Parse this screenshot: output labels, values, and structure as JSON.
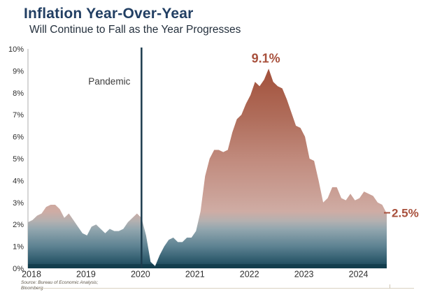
{
  "header": {
    "title": "Inflation Year-Over-Year",
    "subtitle": "Will Continue to Fall as the Year Progresses"
  },
  "source": {
    "line1": "Source: Bureau of Economic Analysis;",
    "line2": "Bloomberg"
  },
  "chart_data": {
    "type": "area",
    "title": "Inflation Year-Over-Year",
    "frequency": "monthly",
    "x_start": "2018-01",
    "x_end": "2024-08",
    "values": [
      2.1,
      2.2,
      2.4,
      2.5,
      2.8,
      2.9,
      2.9,
      2.7,
      2.3,
      2.5,
      2.2,
      1.9,
      1.6,
      1.5,
      1.9,
      2.0,
      1.8,
      1.6,
      1.8,
      1.7,
      1.7,
      1.8,
      2.1,
      2.3,
      2.5,
      2.3,
      1.5,
      0.3,
      0.1,
      0.6,
      1.0,
      1.3,
      1.4,
      1.2,
      1.2,
      1.4,
      1.4,
      1.7,
      2.6,
      4.2,
      5.0,
      5.4,
      5.4,
      5.3,
      5.4,
      6.2,
      6.8,
      7.0,
      7.5,
      7.9,
      8.5,
      8.3,
      8.6,
      9.1,
      8.5,
      8.3,
      8.2,
      7.7,
      7.1,
      6.5,
      6.4,
      6.0,
      5.0,
      4.9,
      4.0,
      3.0,
      3.2,
      3.7,
      3.7,
      3.2,
      3.1,
      3.4,
      3.1,
      3.2,
      3.5,
      3.4,
      3.3,
      3.0,
      2.9,
      2.5
    ],
    "ylim": [
      0,
      10
    ],
    "y_tick_labels": [
      "0%",
      "1%",
      "2%",
      "3%",
      "4%",
      "5%",
      "6%",
      "7%",
      "8%",
      "9%",
      "10%"
    ],
    "x_tick_labels": [
      "2018",
      "2019",
      "2020",
      "2021",
      "2022",
      "2023",
      "2024"
    ],
    "grid": false,
    "legend": "none",
    "annotations": {
      "pandemic": {
        "label": "Pandemic",
        "date": "2020-02"
      },
      "peak": {
        "label": "9.1%",
        "date": "2022-06",
        "value": 9.1
      },
      "latest": {
        "label": "2.5%",
        "date": "2024-08",
        "value": 2.5
      }
    },
    "colors": {
      "annotation_text": "#a8503c",
      "pandemic_line": "#1b3b4d",
      "baseline_bar": "#123d4d",
      "axis_line": "#c8c8c8",
      "area_top": "#9a4836",
      "area_bottom": "#133f50"
    },
    "gradient_stops": [
      {
        "offset": 0.0,
        "color": "#9a4836"
      },
      {
        "offset": 0.12,
        "color": "#a4543f"
      },
      {
        "offset": 0.32,
        "color": "#b06e5c"
      },
      {
        "offset": 0.52,
        "color": "#c28d80"
      },
      {
        "offset": 0.66,
        "color": "#caa096"
      },
      {
        "offset": 0.74,
        "color": "#cfaca4"
      },
      {
        "offset": 0.785,
        "color": "#b3b0b0"
      },
      {
        "offset": 0.82,
        "color": "#93a7af"
      },
      {
        "offset": 0.9,
        "color": "#5d8292"
      },
      {
        "offset": 0.97,
        "color": "#2a5769"
      },
      {
        "offset": 1.0,
        "color": "#133f50"
      }
    ]
  }
}
